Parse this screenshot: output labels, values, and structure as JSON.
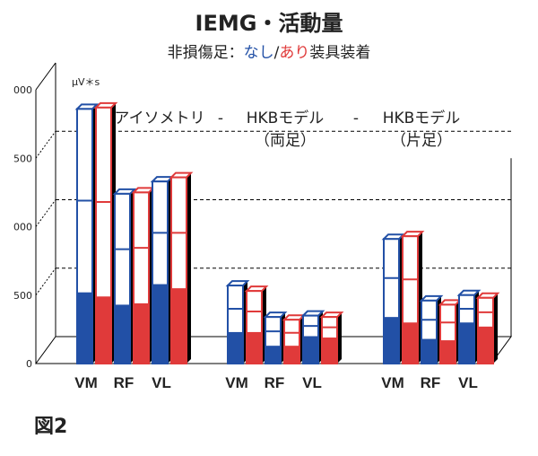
{
  "figure_label": "図2",
  "chart_data": {
    "type": "bar",
    "title": "IEMG・活動量",
    "subtitle": {
      "prefix": "非損傷足：",
      "series_a": "なし",
      "separator": "/",
      "series_b": "あり",
      "suffix": "装具装着"
    },
    "ylabel": "μV＊s",
    "yticks": [
      "0",
      "500",
      "000",
      "500",
      "000"
    ],
    "ylim": [
      0,
      2000
    ],
    "grid": "dashed",
    "conditions": [
      {
        "line1": "アイソメトリ",
        "line2": ""
      },
      {
        "line1": "HKBモデル",
        "line2": "（両足）"
      },
      {
        "line1": "HKBモデル",
        "line2": "（片足）"
      }
    ],
    "separators": [
      "-",
      "-"
    ],
    "categories": [
      "VM",
      "RF",
      "VL",
      "VM",
      "RF",
      "VL",
      "VM",
      "RF",
      "VL"
    ],
    "colors": {
      "なし": "#2250a6",
      "あり": "#e03a3a"
    },
    "series": [
      {
        "name": "なし",
        "values": [
          1860,
          1240,
          1330,
          570,
          340,
          350,
          910,
          460,
          500
        ],
        "bottom_segment": [
          520,
          430,
          580,
          230,
          130,
          200,
          340,
          180,
          300
        ]
      },
      {
        "name": "あり",
        "values": [
          1870,
          1250,
          1360,
          530,
          320,
          340,
          930,
          430,
          480
        ],
        "bottom_segment": [
          490,
          440,
          550,
          230,
          130,
          190,
          300,
          170,
          270
        ]
      }
    ]
  }
}
